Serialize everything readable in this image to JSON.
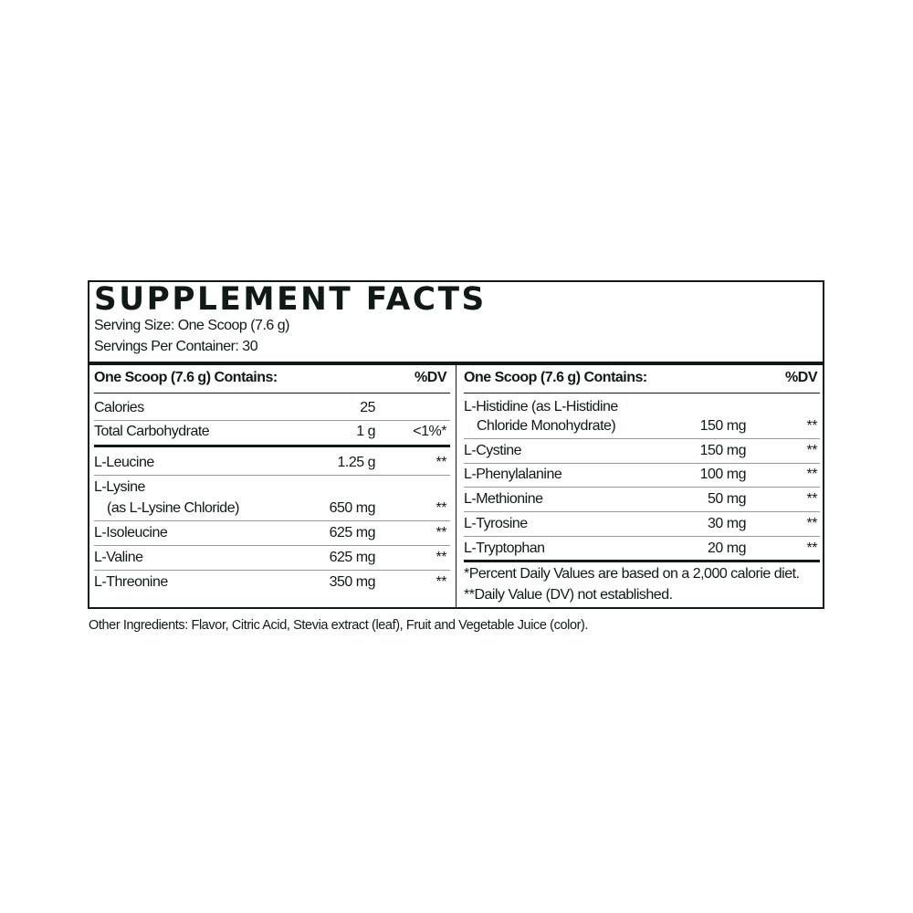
{
  "title": "SUPPLEMENT FACTS",
  "serving_size": "Serving Size: One Scoop (7.6 g)",
  "servings_per_container": "Servings Per Container: 30",
  "colors": {
    "ink": "#0f1a16",
    "rule_light": "#9a9a9a"
  },
  "left": {
    "header": {
      "label": "One Scoop (7.6 g) Contains:",
      "dv": "%DV"
    },
    "rows": [
      {
        "name": "Calories",
        "amount": "25",
        "dv": ""
      },
      {
        "name": "Total Carbohydrate",
        "amount": "1 g",
        "dv": "<1%*"
      },
      {
        "name": "L-Leucine",
        "amount": "1.25 g",
        "dv": "**"
      },
      {
        "name": "L-Lysine",
        "name2": "(as L-Lysine Chloride)",
        "amount": "650 mg",
        "dv": "**"
      },
      {
        "name": "L-Isoleucine",
        "amount": "625 mg",
        "dv": "**"
      },
      {
        "name": "L-Valine",
        "amount": "625 mg",
        "dv": "**"
      },
      {
        "name": "L-Threonine",
        "amount": "350 mg",
        "dv": "**"
      }
    ]
  },
  "right": {
    "header": {
      "label": "One Scoop (7.6 g) Contains:",
      "dv": "%DV"
    },
    "rows": [
      {
        "name": "L-Histidine (as L-Histidine",
        "name2": "Chloride Monohydrate)",
        "amount": "150 mg",
        "dv": "**"
      },
      {
        "name": "L-Cystine",
        "amount": "150 mg",
        "dv": "**"
      },
      {
        "name": "L-Phenylalanine",
        "amount": "100 mg",
        "dv": "**"
      },
      {
        "name": "L-Methionine",
        "amount": "50 mg",
        "dv": "**"
      },
      {
        "name": "L-Tyrosine",
        "amount": "30 mg",
        "dv": "**"
      },
      {
        "name": "L-Tryptophan",
        "amount": "20 mg",
        "dv": "**"
      }
    ],
    "footnotes": [
      "*Percent Daily Values are based on a 2,000 calorie diet.",
      "**Daily Value (DV) not established."
    ]
  },
  "other_ingredients": "Other Ingredients:  Flavor, Citric Acid, Stevia extract (leaf), Fruit and Vegetable Juice (color)."
}
